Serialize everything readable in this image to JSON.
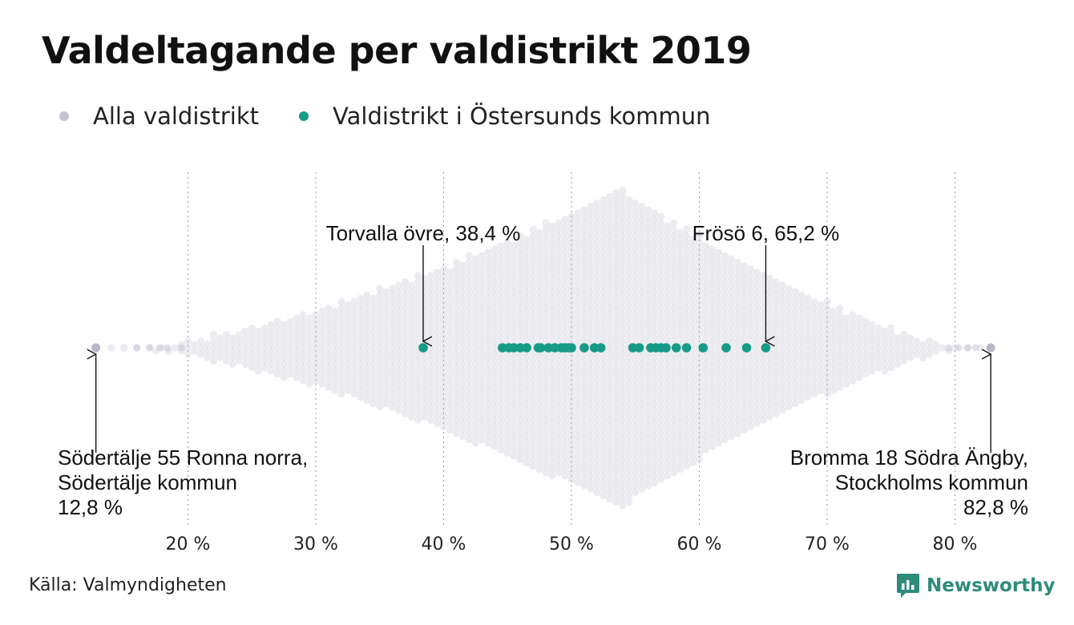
{
  "title": "Valdeltagande per valdistrikt 2019",
  "legend": [
    {
      "label": "Alla valdistrikt",
      "color": "#c4c2cf"
    },
    {
      "label": "Valdistrikt i Östersunds kommun",
      "color": "#179b88"
    }
  ],
  "source": "Källa: Valmyndigheten",
  "brand": "Newsworthy",
  "chart_data": {
    "type": "scatter",
    "subtype": "beeswarm",
    "x_unit": "%",
    "xlim": [
      12,
      84
    ],
    "x_ticks": [
      20,
      30,
      40,
      50,
      60,
      70,
      80
    ],
    "x_tick_labels": [
      "20 %",
      "30 %",
      "40 %",
      "50 %",
      "60 %",
      "70 %",
      "80 %"
    ],
    "grid": "vertical dotted",
    "series": [
      {
        "name": "Alla valdistrikt",
        "color": "#c4c2cf",
        "min": 12.8,
        "max": 82.8,
        "peak": 53.8
      },
      {
        "name": "Valdistrikt i Östersunds kommun",
        "color": "#179b88",
        "values": [
          38.4,
          44.6,
          45.1,
          45.5,
          46.0,
          46.5,
          47.4,
          47.6,
          48.2,
          48.7,
          49.2,
          49.5,
          49.8,
          50.0,
          51.0,
          51.8,
          52.3,
          54.8,
          55.3,
          56.2,
          56.6,
          57.0,
          57.4,
          58.2,
          59.0,
          60.3,
          62.1,
          63.7,
          65.2
        ]
      }
    ],
    "annotations": [
      {
        "lines": [
          "Torvalla övre, 38,4 %"
        ],
        "value": 38.4,
        "position": "above"
      },
      {
        "lines": [
          "Frösö 6, 65,2 %"
        ],
        "value": 65.2,
        "position": "above"
      },
      {
        "lines": [
          "Södertälje 55 Ronna norra,",
          "Södertälje kommun",
          "12,8 %"
        ],
        "value": 12.8,
        "position": "below-left"
      },
      {
        "lines": [
          "Bromma 18 Södra Ängby,",
          "Stockholms kommun",
          "82,8 %"
        ],
        "value": 82.8,
        "position": "below-right"
      }
    ]
  }
}
